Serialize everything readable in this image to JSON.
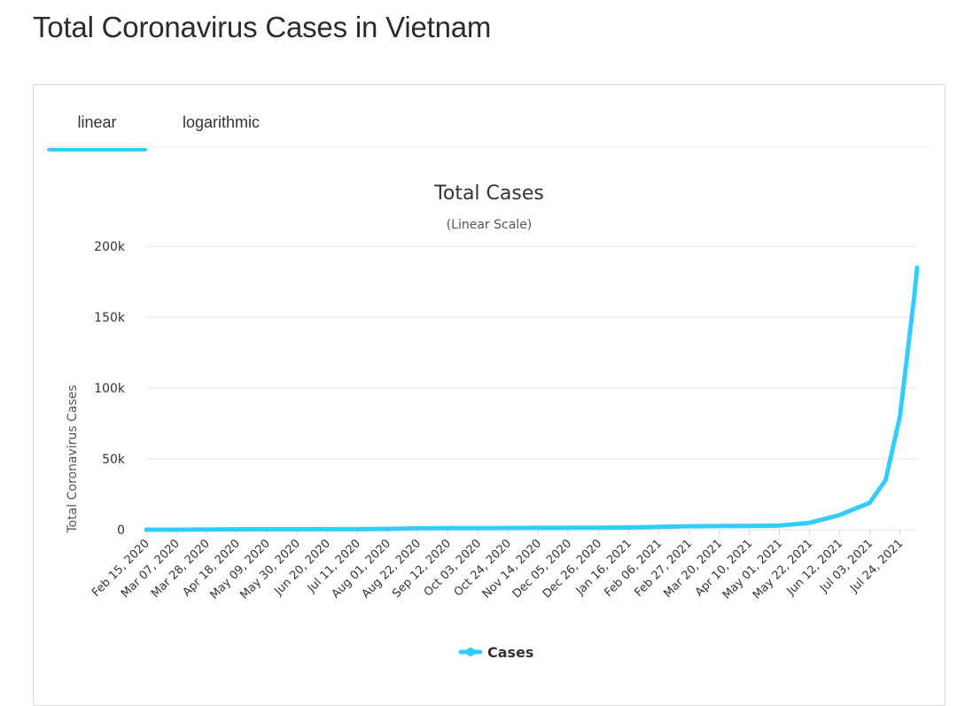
{
  "page": {
    "heading": "Total Coronavirus Cases in Vietnam"
  },
  "tabs": [
    {
      "label": "linear",
      "active": true
    },
    {
      "label": "logarithmic",
      "active": false
    }
  ],
  "colors": {
    "accent": "#33ccff",
    "series": "#33ccff",
    "grid": "#e6e6e6",
    "axis_text": "#333333"
  },
  "chart_data": {
    "type": "line",
    "title": "Total Cases",
    "subtitle": "(Linear Scale)",
    "xlabel": "",
    "ylabel": "Total Coronavirus Cases",
    "ylim": [
      0,
      200000
    ],
    "y_ticks": [
      0,
      50000,
      100000,
      150000,
      200000
    ],
    "y_tick_labels": [
      "0",
      "50k",
      "100k",
      "150k",
      "200k"
    ],
    "x_tick_labels": [
      "Feb 15, 2020",
      "Mar 07, 2020",
      "Mar 28, 2020",
      "Apr 18, 2020",
      "May 09, 2020",
      "May 30, 2020",
      "Jun 20, 2020",
      "Jul 11, 2020",
      "Aug 01, 2020",
      "Aug 22, 2020",
      "Sep 12, 2020",
      "Oct 03, 2020",
      "Oct 24, 2020",
      "Nov 14, 2020",
      "Dec 05, 2020",
      "Dec 26, 2020",
      "Jan 16, 2021",
      "Feb 06, 2021",
      "Feb 27, 2021",
      "Mar 20, 2021",
      "Apr 10, 2021",
      "May 01, 2021",
      "May 22, 2021",
      "Jun 12, 2021",
      "Jul 03, 2021",
      "Jul 24, 2021"
    ],
    "grid": true,
    "legend": "bottom-center",
    "series": [
      {
        "name": "Cases",
        "x": [
          "Feb 15, 2020",
          "Mar 07, 2020",
          "Mar 28, 2020",
          "Apr 18, 2020",
          "May 09, 2020",
          "May 30, 2020",
          "Jun 20, 2020",
          "Jul 11, 2020",
          "Aug 01, 2020",
          "Aug 22, 2020",
          "Sep 12, 2020",
          "Oct 03, 2020",
          "Oct 24, 2020",
          "Nov 14, 2020",
          "Dec 05, 2020",
          "Dec 26, 2020",
          "Jan 16, 2021",
          "Feb 06, 2021",
          "Feb 27, 2021",
          "Mar 20, 2021",
          "Apr 10, 2021",
          "May 01, 2021",
          "May 22, 2021",
          "Jun 12, 2021",
          "Jul 03, 2021",
          "Jul 14, 2021",
          "Jul 24, 2021",
          "Aug 03, 2021",
          "Aug 05, 2021"
        ],
        "values": [
          16,
          30,
          174,
          268,
          288,
          328,
          349,
          370,
          590,
          1020,
          1060,
          1097,
          1169,
          1304,
          1366,
          1450,
          1548,
          1976,
          2448,
          2575,
          2717,
          2928,
          4809,
          10356,
          19000,
          35000,
          80000,
          165000,
          185000
        ]
      }
    ]
  }
}
